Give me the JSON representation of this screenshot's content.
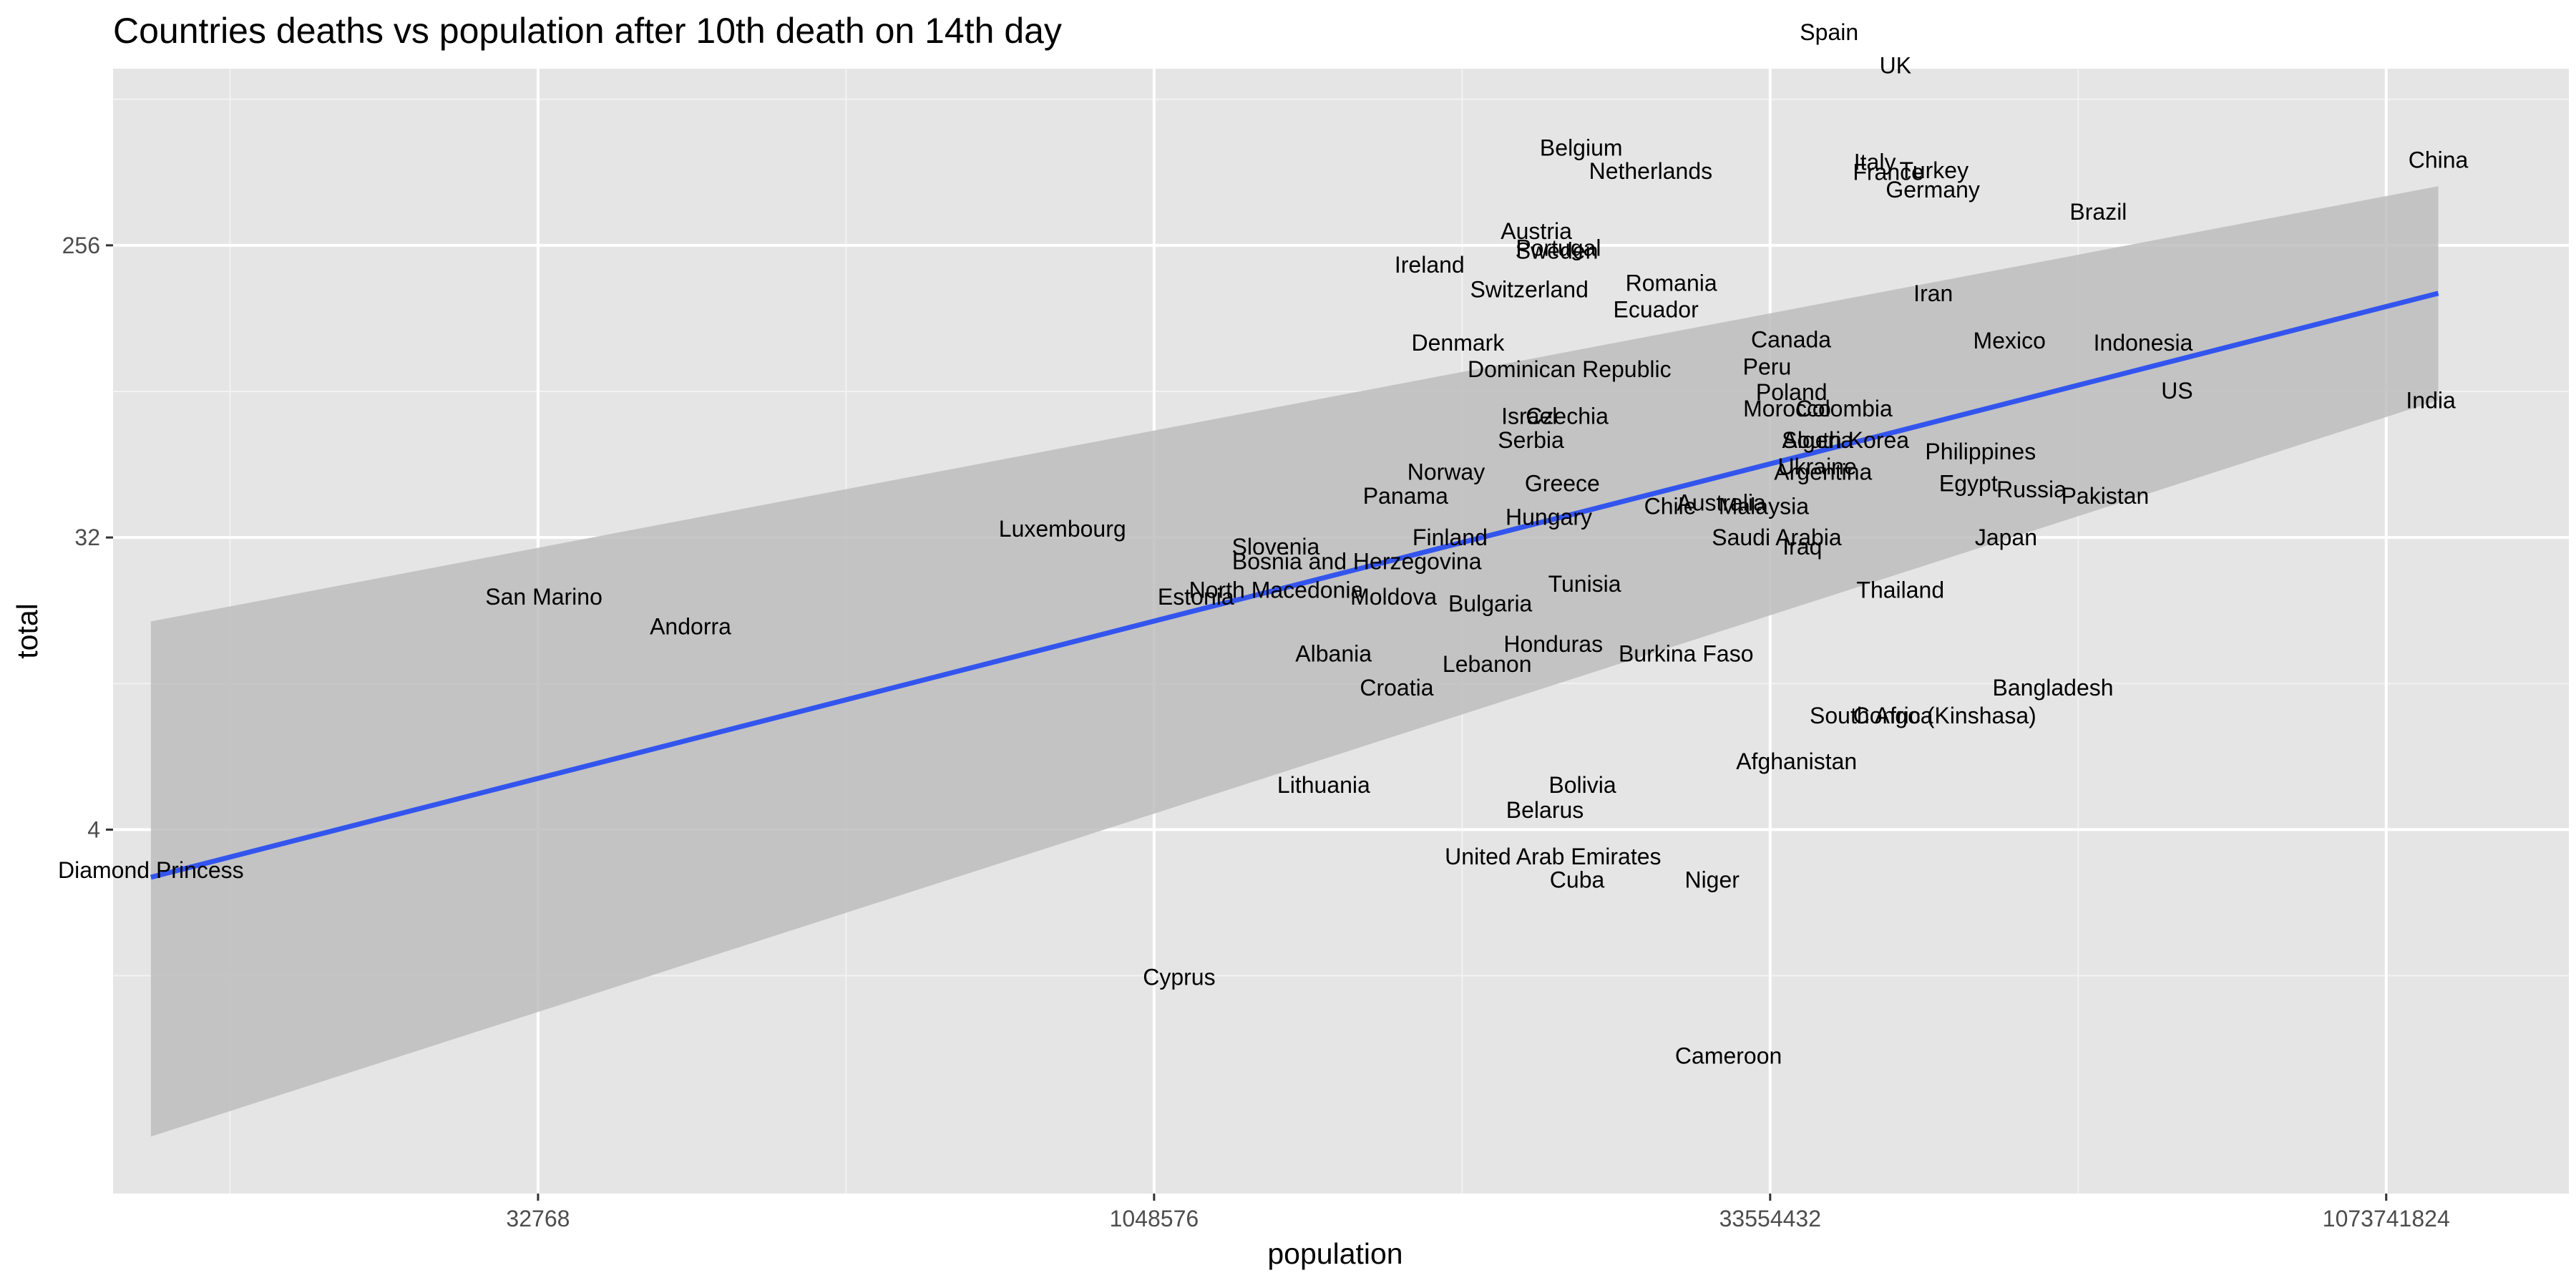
{
  "colors": {
    "panel": "#e5e5e5",
    "grid_major": "#ffffff",
    "grid_minor": "#f2f2f2",
    "fit_line": "#3355ee",
    "ribbon": "#bdbdbd",
    "label": "#000000",
    "label_faded": "#333333"
  },
  "chart_data": {
    "type": "scatter",
    "title": "Countries deaths vs population after 10th death on 14th day",
    "xlabel": "population",
    "ylabel": "total",
    "x_scale": "log2",
    "y_scale": "log2",
    "xlim": [
      3000,
      3000000000
    ],
    "ylim": [
      0.3,
      900
    ],
    "x_ticks": [
      32768,
      1048576,
      33554432,
      1073741824
    ],
    "x_tick_labels": [
      "32768",
      "1048576",
      "33554432",
      "1073741824"
    ],
    "y_ticks": [
      4,
      32,
      256
    ],
    "y_tick_labels": [
      "4",
      "32",
      "256"
    ],
    "grid": true,
    "legend": "none",
    "points": [
      {
        "label": "Diamond Princess",
        "x": 3711,
        "y": 3
      },
      {
        "label": "San Marino",
        "x": 33860,
        "y": 21
      },
      {
        "label": "Andorra",
        "x": 77265,
        "y": 17
      },
      {
        "label": "Luxembourg",
        "x": 625978,
        "y": 34
      },
      {
        "label": "Estonia",
        "x": 1326535,
        "y": 21
      },
      {
        "label": "Cyprus",
        "x": 1207359,
        "y": 1.4
      },
      {
        "label": "Slovenia",
        "x": 2078938,
        "y": 30
      },
      {
        "label": "North Macedonia",
        "x": 2083374,
        "y": 22
      },
      {
        "label": "Moldova",
        "x": 4033963,
        "y": 21
      },
      {
        "label": "Albania",
        "x": 2877797,
        "y": 14
      },
      {
        "label": "Lithuania",
        "x": 2722289,
        "y": 5.5
      },
      {
        "label": "Croatia",
        "x": 4105267,
        "y": 11
      },
      {
        "label": "Panama",
        "x": 4314767,
        "y": 43
      },
      {
        "label": "Norway",
        "x": 5421241,
        "y": 51
      },
      {
        "label": "Ireland",
        "x": 4937786,
        "y": 223
      },
      {
        "label": "Finland",
        "x": 5540720,
        "y": 32
      },
      {
        "label": "Denmark",
        "x": 5792202,
        "y": 128
      },
      {
        "label": "Serbia",
        "x": 8737371,
        "y": 64
      },
      {
        "label": "Bosnia and Herzegovina",
        "x": 3280819,
        "y": 27
      },
      {
        "label": "Bulgaria",
        "x": 6948445,
        "y": 20
      },
      {
        "label": "Lebanon",
        "x": 6825445,
        "y": 13
      },
      {
        "label": "Congo (Kinshasa)",
        "x": 89561403,
        "y": 9
      },
      {
        "label": "Israel",
        "x": 8655535,
        "y": 76
      },
      {
        "label": "Austria",
        "x": 9006398,
        "y": 283
      },
      {
        "label": "Portugal",
        "x": 10196709,
        "y": 251
      },
      {
        "label": "Sweden",
        "x": 10099265,
        "y": 246
      },
      {
        "label": "Switzerland",
        "x": 8654622,
        "y": 187
      },
      {
        "label": "Belgium",
        "x": 11589623,
        "y": 513
      },
      {
        "label": "Czechia",
        "x": 10708981,
        "y": 76
      },
      {
        "label": "Hungary",
        "x": 9660351,
        "y": 37
      },
      {
        "label": "Greece",
        "x": 10423054,
        "y": 47
      },
      {
        "label": "Tunisia",
        "x": 11818619,
        "y": 23
      },
      {
        "label": "Honduras",
        "x": 9904607,
        "y": 15
      },
      {
        "label": "Bolivia",
        "x": 11673021,
        "y": 5.5
      },
      {
        "label": "Belarus",
        "x": 9449323,
        "y": 4.6
      },
      {
        "label": "United Arab Emirates",
        "x": 9890402,
        "y": 3.3
      },
      {
        "label": "Cuba",
        "x": 11326616,
        "y": 2.8
      },
      {
        "label": "Dominican Republic",
        "x": 10847910,
        "y": 106
      },
      {
        "label": "Chile",
        "x": 19116201,
        "y": 40
      },
      {
        "label": "Netherlands",
        "x": 17134872,
        "y": 434
      },
      {
        "label": "Ecuador",
        "x": 17643054,
        "y": 162
      },
      {
        "label": "Romania",
        "x": 19237691,
        "y": 196
      },
      {
        "label": "Niger",
        "x": 24206644,
        "y": 2.8
      },
      {
        "label": "Burkina Faso",
        "x": 20903273,
        "y": 14
      },
      {
        "label": "Australia",
        "x": 25499884,
        "y": 41
      },
      {
        "label": "Cameroon",
        "x": 26545863,
        "y": 0.8
      },
      {
        "label": "Malaysia",
        "x": 32365999,
        "y": 40
      },
      {
        "label": "Peru",
        "x": 32971854,
        "y": 108
      },
      {
        "label": "Canada",
        "x": 37742154,
        "y": 131
      },
      {
        "label": "Saudi Arabia",
        "x": 34813871,
        "y": 32
      },
      {
        "label": "Iraq",
        "x": 40222493,
        "y": 30
      },
      {
        "label": "Afghanistan",
        "x": 38928346,
        "y": 6.5
      },
      {
        "label": "Morocco",
        "x": 36910560,
        "y": 80
      },
      {
        "label": "Poland",
        "x": 37846611,
        "y": 90
      },
      {
        "label": "Algeria",
        "x": 43851044,
        "y": 64
      },
      {
        "label": "Ukraine",
        "x": 43733762,
        "y": 53
      },
      {
        "label": "Spain",
        "x": 46754778,
        "y": 1166
      },
      {
        "label": "Argentina",
        "x": 45195774,
        "y": 51
      },
      {
        "label": "Colombia",
        "x": 50882891,
        "y": 80
      },
      {
        "label": "South Korea",
        "x": 51269185,
        "y": 64
      },
      {
        "label": "South Africa",
        "x": 59308690,
        "y": 9
      },
      {
        "label": "UK",
        "x": 67886011,
        "y": 921
      },
      {
        "label": "Italy",
        "x": 60461826,
        "y": 463
      },
      {
        "label": "France",
        "x": 65273511,
        "y": 431
      },
      {
        "label": "Thailand",
        "x": 69799978,
        "y": 22
      },
      {
        "label": "Turkey",
        "x": 84339067,
        "y": 437
      },
      {
        "label": "Germany",
        "x": 83783942,
        "y": 381
      },
      {
        "label": "Iran",
        "x": 83992949,
        "y": 182
      },
      {
        "label": "Egypt",
        "x": 102334404,
        "y": 47
      },
      {
        "label": "Philippines",
        "x": 109581078,
        "y": 59
      },
      {
        "label": "Japan",
        "x": 126476461,
        "y": 32
      },
      {
        "label": "Mexico",
        "x": 128932753,
        "y": 130
      },
      {
        "label": "Russia",
        "x": 145934462,
        "y": 45
      },
      {
        "label": "Bangladesh",
        "x": 164689383,
        "y": 11
      },
      {
        "label": "Brazil",
        "x": 212559417,
        "y": 325
      },
      {
        "label": "Pakistan",
        "x": 220892340,
        "y": 43
      },
      {
        "label": "Indonesia",
        "x": 273523615,
        "y": 128
      },
      {
        "label": "US",
        "x": 331002651,
        "y": 91
      },
      {
        "label": "India",
        "x": 1380004385,
        "y": 85
      },
      {
        "label": "China",
        "x": 1439323776,
        "y": 470
      }
    ],
    "fit": {
      "method": "lm",
      "x_range": [
        3711,
        1439323776
      ],
      "y_fit": [
        2.85,
        182
      ],
      "band_low": [
        0.45,
        85
      ],
      "band_high": [
        17.6,
        390
      ]
    }
  }
}
